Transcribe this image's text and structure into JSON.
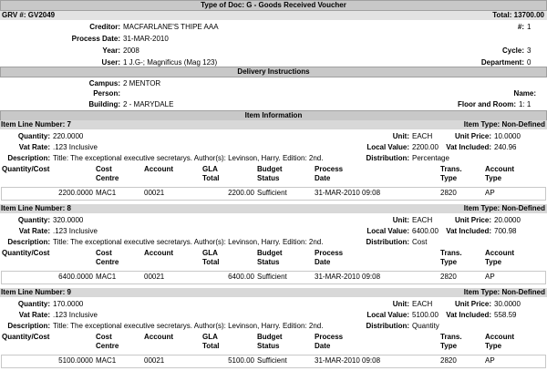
{
  "header": {
    "title": "Type of Doc: G - Goods Received Voucher",
    "grv": {
      "label": "GRV #:",
      "value": "GV2049"
    },
    "total": {
      "label": "Total:",
      "value": "13700.00"
    }
  },
  "details": {
    "rows": [
      {
        "left": {
          "label": "Creditor:",
          "value": "MACFARLANE'S THIPE AAA"
        },
        "right": {
          "label": "#:",
          "value": "1"
        }
      },
      {
        "left": {
          "label": "Process Date:",
          "value": "31-MAR-2010"
        }
      },
      {
        "left": {
          "label": "Year:",
          "value": "2008"
        },
        "right": {
          "label": "Cycle:",
          "value": "3"
        }
      },
      {
        "left": {
          "label": "User:",
          "value": "1 J.G-; Magnificus (Mag 123)"
        },
        "right": {
          "label": "Department:",
          "value": "0"
        }
      }
    ]
  },
  "delivery": {
    "title": "Delivery Instructions",
    "rows": [
      {
        "left": {
          "label": "Campus:",
          "value": "2  MENTOR"
        }
      },
      {
        "left": {
          "label": "Person:"
        },
        "right": {
          "label": "Name:"
        }
      },
      {
        "left": {
          "label": "Building:",
          "value": "2 - MARYDALE"
        },
        "right": {
          "label": "Floor and Room:",
          "value": "1: 1"
        }
      }
    ]
  },
  "items": {
    "title": "Item Information",
    "lines": [
      {
        "number": {
          "label": "Item Line Number:",
          "value": "7"
        },
        "type": {
          "label": "Item Type:",
          "value": "Non-Defined"
        },
        "rows": [
          {
            "left": {
              "label": "Quantity:",
              "value": "220.0000"
            },
            "mid": {
              "label": "Unit:",
              "value": "EACH"
            },
            "right": {
              "label": "Unit Price:",
              "value": "10.0000"
            }
          },
          {
            "left": {
              "label": "Vat Rate:",
              "value": ".123 Inclusive"
            },
            "mid": {
              "label": "Local Value:",
              "value": "2200.00"
            },
            "right": {
              "label": "Vat Included:",
              "value": "240.96"
            }
          },
          {
            "left": {
              "label": "Description:",
              "value": "Title: The exceptional executive secretarys. Author(s): Levinson, Harry. Edition: 2nd."
            },
            "mid": {
              "label": "Distribution:",
              "value": "Percentage"
            }
          }
        ],
        "columns": [
          "Quantity/Cost",
          "Cost Centre",
          "Account",
          "GLA Total",
          "Budget Status",
          "Process Date",
          "Trans. Type",
          "Account Type"
        ],
        "line": [
          "2200.0000",
          "MAC1",
          "00021",
          "2200.00",
          "Sufficient",
          "31-MAR-2010 09:08",
          "2820",
          "AP"
        ]
      },
      {
        "number": {
          "label": "Item Line Number:",
          "value": "8"
        },
        "type": {
          "label": "Item Type:",
          "value": "Non-Defined"
        },
        "rows": [
          {
            "left": {
              "label": "Quantity:",
              "value": "320.0000"
            },
            "mid": {
              "label": "Unit:",
              "value": "EACH"
            },
            "right": {
              "label": "Unit Price:",
              "value": "20.0000"
            }
          },
          {
            "left": {
              "label": "Vat Rate:",
              "value": ".123 Inclusive"
            },
            "mid": {
              "label": "Local Value:",
              "value": "6400.00"
            },
            "right": {
              "label": "Vat Included:",
              "value": "700.98"
            }
          },
          {
            "left": {
              "label": "Description:",
              "value": "Title: The exceptional executive secretarys. Author(s): Levinson, Harry. Edition: 2nd."
            },
            "mid": {
              "label": "Distribution:",
              "value": "Cost"
            }
          }
        ],
        "columns": [
          "Quantity/Cost",
          "Cost Centre",
          "Account",
          "GLA Total",
          "Budget Status",
          "Process Date",
          "Trans. Type",
          "Account Type"
        ],
        "line": [
          "6400.0000",
          "MAC1",
          "00021",
          "6400.00",
          "Sufficient",
          "31-MAR-2010 09:08",
          "2820",
          "AP"
        ]
      },
      {
        "number": {
          "label": "Item Line Number:",
          "value": "9"
        },
        "type": {
          "label": "Item Type:",
          "value": "Non-Defined"
        },
        "rows": [
          {
            "left": {
              "label": "Quantity:",
              "value": "170.0000"
            },
            "mid": {
              "label": "Unit:",
              "value": "EACH"
            },
            "right": {
              "label": "Unit Price:",
              "value": "30.0000"
            }
          },
          {
            "left": {
              "label": "Vat Rate:",
              "value": ".123 Inclusive"
            },
            "mid": {
              "label": "Local Value:",
              "value": "5100.00"
            },
            "right": {
              "label": "Vat Included:",
              "value": "558.59"
            }
          },
          {
            "left": {
              "label": "Description:",
              "value": "Title: The exceptional executive secretarys. Author(s): Levinson, Harry. Edition: 2nd."
            },
            "mid": {
              "label": "Distribution:",
              "value": "Quantity"
            }
          }
        ],
        "columns": [
          "Quantity/Cost",
          "Cost Centre",
          "Account",
          "GLA Total",
          "Budget Status",
          "Process Date",
          "Trans. Type",
          "Account Type"
        ],
        "line": [
          "5100.0000",
          "MAC1",
          "00021",
          "5100.00",
          "Sufficient",
          "31-MAR-2010 09:08",
          "2820",
          "AP"
        ]
      }
    ]
  }
}
